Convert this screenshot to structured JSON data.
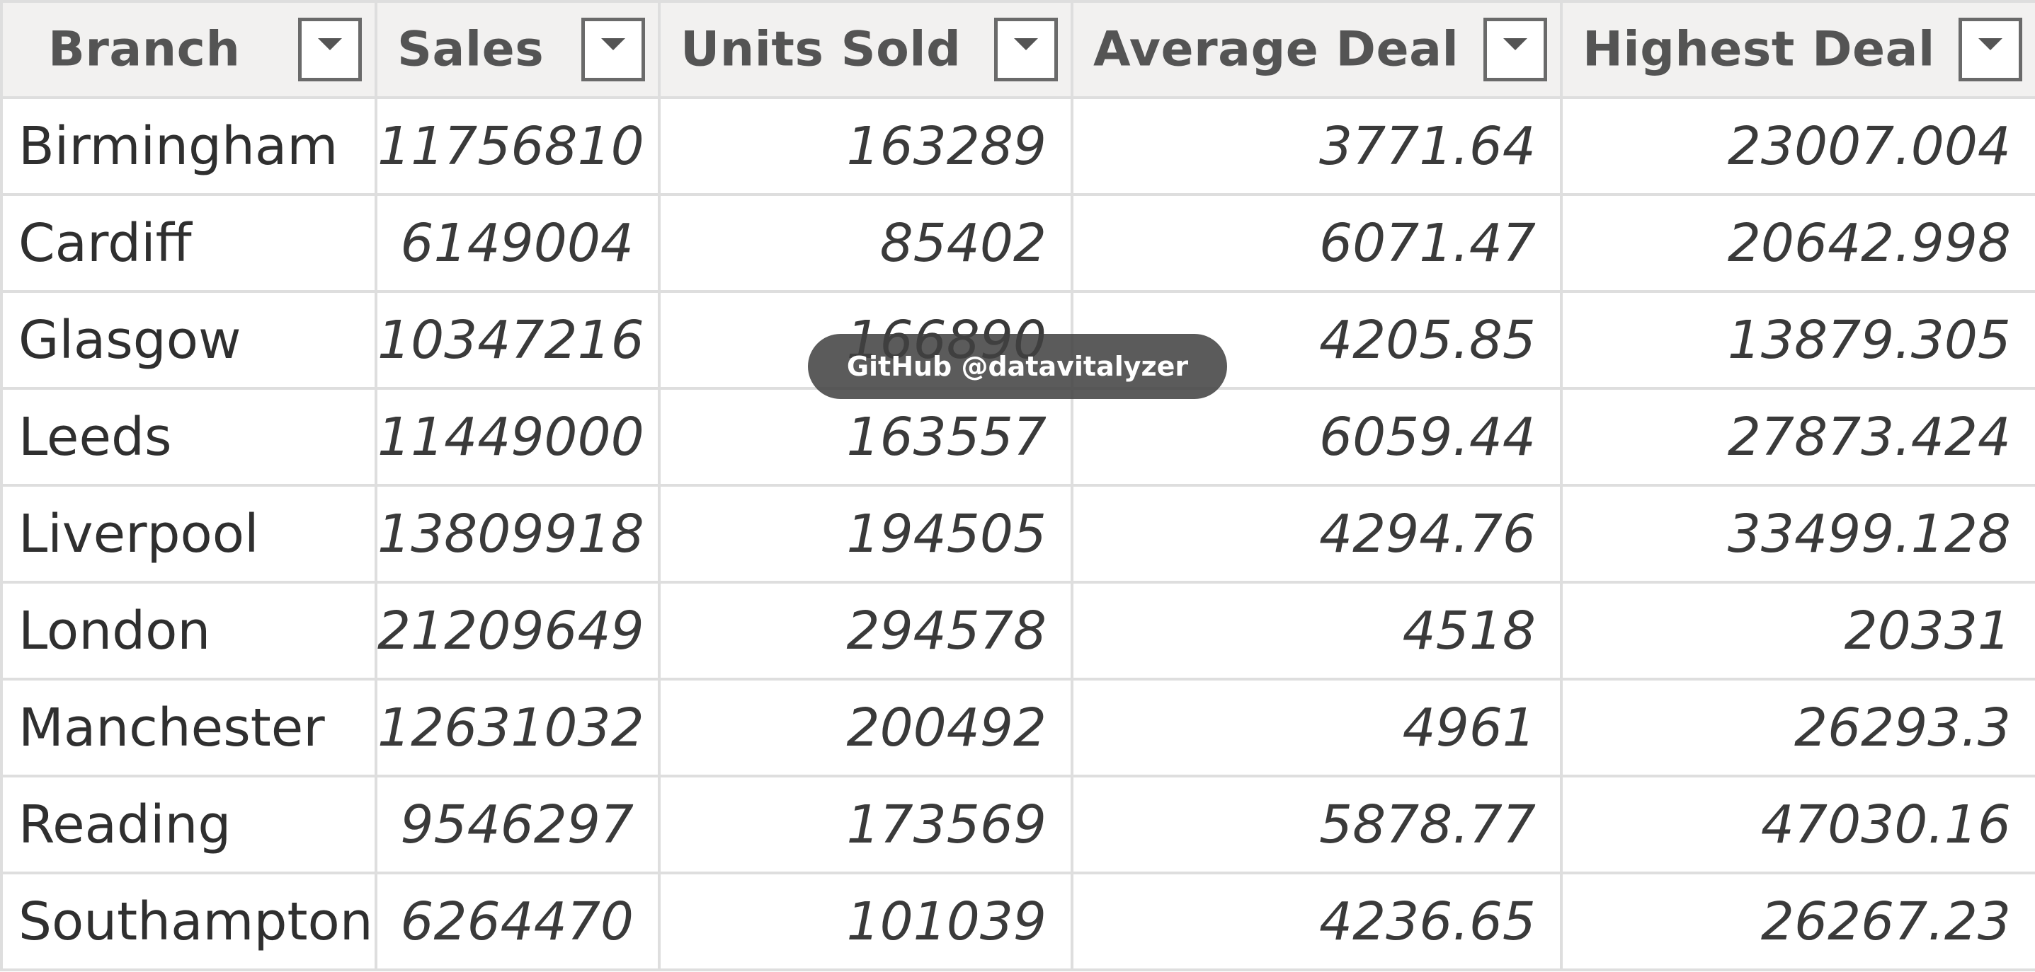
{
  "table": {
    "columns": [
      {
        "label": "Branch",
        "filter_icon": "dropdown-filter-icon"
      },
      {
        "label": "Sales",
        "filter_icon": "dropdown-filter-icon"
      },
      {
        "label": "Units Sold",
        "filter_icon": "dropdown-filter-icon"
      },
      {
        "label": "Average Deal",
        "filter_icon": "dropdown-filter-icon"
      },
      {
        "label": "Highest Deal",
        "filter_icon": "dropdown-filter-icon"
      }
    ],
    "rows": [
      [
        "Birmingham",
        "11756810",
        "163289",
        "3771.64",
        "23007.004"
      ],
      [
        "Cardiff",
        "6149004",
        "85402",
        "6071.47",
        "20642.998"
      ],
      [
        "Glasgow",
        "10347216",
        "166890",
        "4205.85",
        "13879.305"
      ],
      [
        "Leeds",
        "11449000",
        "163557",
        "6059.44",
        "27873.424"
      ],
      [
        "Liverpool",
        "13809918",
        "194505",
        "4294.76",
        "33499.128"
      ],
      [
        "London",
        "21209649",
        "294578",
        "4518",
        "20331"
      ],
      [
        "Manchester",
        "12631032",
        "200492",
        "4961",
        "26293.3"
      ],
      [
        "Reading",
        "9546297",
        "173569",
        "5878.77",
        "47030.16"
      ],
      [
        "Southampton",
        "6264470",
        "101039",
        "4236.65",
        "26267.23"
      ]
    ]
  },
  "watermark": {
    "text": "GitHub @datavitalyzer"
  },
  "colors": {
    "header_bg": "#f2f1f0",
    "header_text": "#545454",
    "grid_line": "#dedede",
    "watermark_bg": "#404040"
  }
}
